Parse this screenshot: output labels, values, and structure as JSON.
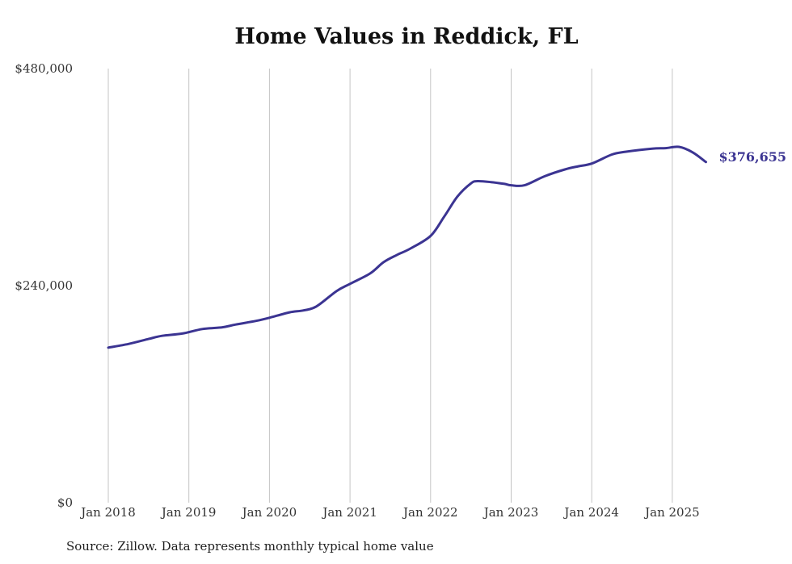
{
  "chart_data": {
    "type": "line",
    "title": "Home Values in Reddick, FL",
    "source": "Source: Zillow. Data represents monthly typical home value",
    "xlabel": "",
    "ylabel": "",
    "ylim": [
      0,
      480000
    ],
    "y_ticks": [
      0,
      240000,
      480000
    ],
    "y_tick_labels": [
      "$0",
      "$240,000",
      "$480,000"
    ],
    "x_range": [
      2018.0,
      2025.417
    ],
    "x_ticks": [
      2018,
      2019,
      2020,
      2021,
      2022,
      2023,
      2024,
      2025
    ],
    "x_tick_labels": [
      "Jan 2018",
      "Jan 2019",
      "Jan 2020",
      "Jan 2021",
      "Jan 2022",
      "Jan 2023",
      "Jan 2024",
      "Jan 2025"
    ],
    "grid": "vertical",
    "line_color": "#3b3492",
    "end_label": "$376,655",
    "series": [
      {
        "x": [
          2018.0,
          2018.25,
          2018.5,
          2018.667,
          2018.917,
          2019.167,
          2019.417,
          2019.583,
          2019.833,
          2020.0,
          2020.25,
          2020.417,
          2020.583,
          2020.833,
          2021.0,
          2021.25,
          2021.417,
          2021.583,
          2021.75,
          2022.0,
          2022.167,
          2022.333,
          2022.5,
          2022.583,
          2022.75,
          2022.917,
          2023.0,
          2023.167,
          2023.417,
          2023.667,
          2023.833,
          2024.0,
          2024.25,
          2024.417,
          2024.75,
          2024.917,
          2025.083,
          2025.25,
          2025.417
        ],
        "y": [
          171500,
          175500,
          181000,
          184500,
          187000,
          192000,
          194000,
          197000,
          201000,
          204500,
          210500,
          212500,
          217000,
          234000,
          242000,
          253500,
          266000,
          274000,
          281000,
          295000,
          316000,
          338500,
          353000,
          355500,
          354500,
          352500,
          351000,
          351000,
          361000,
          368500,
          372000,
          375000,
          385000,
          388000,
          391500,
          392000,
          393500,
          387500,
          376655
        ]
      }
    ]
  }
}
